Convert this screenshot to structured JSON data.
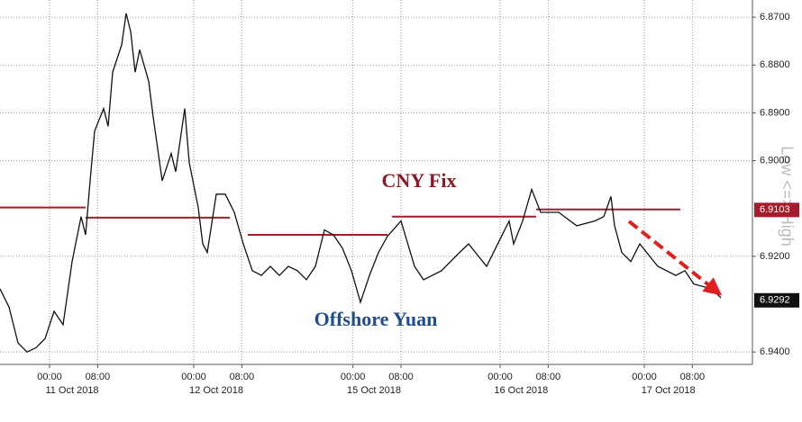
{
  "chart_data": {
    "type": "line",
    "y_axis_title": "Low <=> High",
    "annotations": [
      "CNY Fix",
      "Offshore Yuan"
    ],
    "xlim": [
      -8.25,
      117
    ],
    "ylim": [
      6.9426,
      6.8664
    ],
    "yticks": [
      {
        "value": 6.87,
        "label": "6.8700"
      },
      {
        "value": 6.88,
        "label": "6.8800"
      },
      {
        "value": 6.89,
        "label": "6.8900"
      },
      {
        "value": 6.9,
        "label": "6.9000"
      },
      {
        "value": 6.92,
        "label": "6.9200"
      },
      {
        "value": 6.94,
        "label": "6.9400"
      }
    ],
    "xticks": [
      {
        "value": 0,
        "label": "00:00"
      },
      {
        "value": 8,
        "label": "08:00"
      },
      {
        "value": 24,
        "label": "00:00"
      },
      {
        "value": 32,
        "label": "08:00"
      },
      {
        "value": 50.5,
        "label": "00:00"
      },
      {
        "value": 58.5,
        "label": "08:00"
      },
      {
        "value": 75,
        "label": "00:00"
      },
      {
        "value": 83,
        "label": "08:00"
      },
      {
        "value": 99,
        "label": "00:00"
      },
      {
        "value": 107,
        "label": "08:00"
      }
    ],
    "date_labels": [
      {
        "value": 3.75,
        "label": "11 Oct 2018"
      },
      {
        "value": 27.75,
        "label": "12 Oct 2018"
      },
      {
        "value": 54,
        "label": "15 Oct 2018"
      },
      {
        "value": 78.5,
        "label": "16 Oct 2018"
      },
      {
        "value": 103,
        "label": "17 Oct 2018"
      }
    ],
    "grid": true,
    "series": [
      {
        "name": "Offshore Yuan",
        "color": "#111111",
        "x": [
          -8.25,
          -6.75,
          -5.25,
          -3.75,
          -2.25,
          -0.75,
          0.75,
          2.25,
          3.75,
          5.25,
          6,
          6.75,
          7.5,
          9,
          9.75,
          10.5,
          12,
          12.75,
          13.5,
          14.25,
          15,
          16.5,
          17.25,
          18.75,
          20.25,
          21,
          22.5,
          23.25,
          24.75,
          25.5,
          26.25,
          27.75,
          29.25,
          30.75,
          32.25,
          33.75,
          35.25,
          36.75,
          38.25,
          39.75,
          41.25,
          42.75,
          44.25,
          45.75,
          47.25,
          48.75,
          50.25,
          51.75,
          53.25,
          54.75,
          56.25,
          58.5,
          60.75,
          62.25,
          65.25,
          68.25,
          69.75,
          72.75,
          75,
          76.5,
          77.25,
          78.75,
          80.25,
          81.75,
          84.75,
          87.75,
          90.75,
          92.25,
          93.45,
          94.05,
          95.25,
          96.75,
          98.25,
          101.25,
          104.25,
          105.75,
          107.25,
          110.25,
          111.75
        ],
        "values": [
          6.9268,
          6.9306,
          6.9381,
          6.94,
          6.9391,
          6.9372,
          6.9315,
          6.9343,
          6.9211,
          6.9117,
          6.9155,
          6.9042,
          6.8938,
          6.8891,
          6.8928,
          6.8815,
          6.8758,
          6.8692,
          6.873,
          6.8815,
          6.8768,
          6.8834,
          6.8909,
          6.9042,
          6.8985,
          6.9023,
          6.8891,
          6.9004,
          6.9098,
          6.9174,
          6.9192,
          6.907,
          6.907,
          6.9108,
          6.9174,
          6.923,
          6.924,
          6.9221,
          6.924,
          6.9221,
          6.923,
          6.9249,
          6.9221,
          6.9145,
          6.9155,
          6.9183,
          6.923,
          6.9296,
          6.924,
          6.9192,
          6.9158,
          6.9126,
          6.9221,
          6.9249,
          6.923,
          6.9192,
          6.9174,
          6.9221,
          6.9164,
          6.9126,
          6.9174,
          6.9126,
          6.906,
          6.9108,
          6.9108,
          6.9136,
          6.9126,
          6.9117,
          6.9075,
          6.9136,
          6.9192,
          6.9211,
          6.9174,
          6.9221,
          6.924,
          6.923,
          6.9258,
          6.9268,
          6.9287
        ]
      }
    ],
    "fix_segments": {
      "name": "CNY Fix",
      "color": "#a51d2a",
      "x_start": [
        -8.25,
        6,
        33,
        57,
        81
      ],
      "x_end": [
        6,
        30,
        56.25,
        81,
        105
      ],
      "values": [
        6.9098,
        6.9119,
        6.9155,
        6.9117,
        6.9102
      ]
    },
    "last_values": [
      {
        "value": 6.9103,
        "color": "#a51d2a"
      },
      {
        "value": 6.9292,
        "color": "#111111"
      }
    ]
  }
}
